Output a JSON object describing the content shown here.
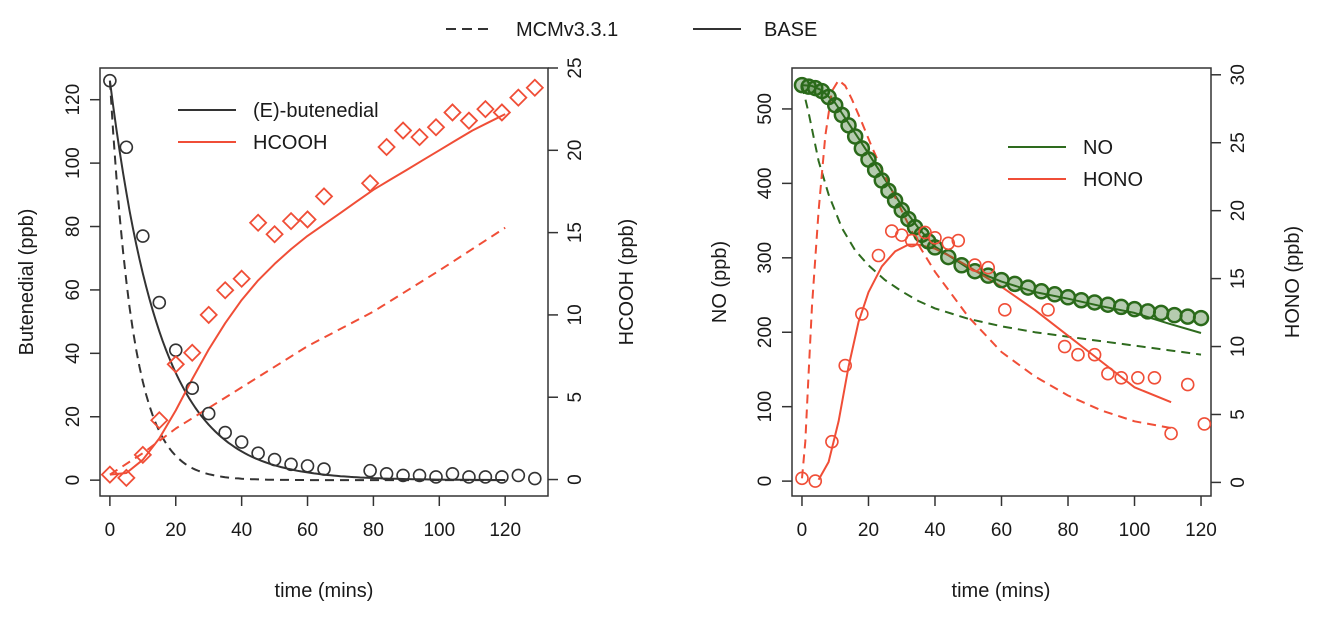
{
  "figure_legend": {
    "items": [
      {
        "label": "MCMv3.3.1",
        "dash": true
      },
      {
        "label": "BASE",
        "dash": false
      }
    ]
  },
  "colors": {
    "black": "#333333",
    "red": "#f04e37",
    "green": "#2e6b1e",
    "green_marker": "#2a6a1a"
  },
  "chart_data": [
    {
      "type": "line",
      "panel": "left",
      "xlabel": "time (mins)",
      "ylabel_left": "Butenedial (ppb)",
      "ylabel_right": "HCOOH (ppb)",
      "xlim": [
        -3,
        133
      ],
      "ylim_left": [
        -5,
        130
      ],
      "ylim_right": [
        -1,
        25
      ],
      "x_ticks": [
        0,
        20,
        40,
        60,
        80,
        100,
        120
      ],
      "y_ticks_left": [
        0,
        20,
        40,
        60,
        80,
        100,
        120
      ],
      "y_ticks_right": [
        0,
        5,
        10,
        15,
        20,
        25
      ],
      "legend": {
        "placement": "top",
        "entries": [
          {
            "label": "(E)-butenedial",
            "color": "#333333"
          },
          {
            "label": "HCOOH",
            "color": "#f04e37"
          }
        ]
      },
      "series": [
        {
          "name": "(E)-butenedial",
          "kind": "observed",
          "axis": "left",
          "marker": "circle",
          "color": "#333333",
          "x": [
            0,
            5,
            10,
            15,
            20,
            25,
            30,
            35,
            40,
            45,
            50,
            55,
            60,
            65,
            79,
            84,
            89,
            94,
            99,
            104,
            109,
            114,
            119,
            124,
            129
          ],
          "y": [
            126,
            105,
            77,
            56,
            41,
            29,
            21,
            15,
            12,
            8.5,
            6.5,
            5,
            4.5,
            3.5,
            3,
            2,
            1.5,
            1.5,
            1,
            2,
            1,
            1,
            1,
            1.5,
            0.5
          ]
        },
        {
          "name": "(E)-butenedial",
          "kind": "BASE",
          "axis": "left",
          "color": "#333333",
          "dash": false,
          "model": {
            "type": "exp",
            "y0": 126,
            "k": 0.0658,
            "x0": 0,
            "x1": 120
          }
        },
        {
          "name": "(E)-butenedial",
          "kind": "MCMv3.3.1",
          "axis": "left",
          "color": "#333333",
          "dash": true,
          "model": {
            "type": "exp",
            "y0": 126,
            "k": 0.14,
            "x0": 0,
            "x1": 120
          }
        },
        {
          "name": "HCOOH",
          "kind": "observed",
          "axis": "right",
          "marker": "diamond",
          "color": "#f04e37",
          "x": [
            0,
            5,
            10,
            15,
            20,
            25,
            30,
            35,
            40,
            45,
            50,
            55,
            60,
            65,
            79,
            84,
            89,
            94,
            99,
            104,
            109,
            114,
            119,
            124,
            129
          ],
          "y": [
            0.3,
            0.1,
            1.5,
            3.6,
            7,
            7.7,
            10,
            11.5,
            12.2,
            15.6,
            14.9,
            15.7,
            15.8,
            17.2,
            18,
            20.2,
            21.2,
            20.8,
            21.4,
            22.3,
            21.8,
            22.5,
            22.3,
            23.2,
            23.8
          ]
        },
        {
          "name": "HCOOH",
          "kind": "BASE",
          "axis": "right",
          "color": "#f04e37",
          "dash": false,
          "x": [
            0,
            5,
            10,
            15,
            20,
            25,
            30,
            35,
            40,
            45,
            50,
            55,
            60,
            65,
            70,
            75,
            80,
            85,
            90,
            95,
            100,
            105,
            110,
            115,
            120
          ],
          "y": [
            0.3,
            0.4,
            1.2,
            2.5,
            4.2,
            6.1,
            7.9,
            9.5,
            10.9,
            12.1,
            13.1,
            14,
            14.8,
            15.5,
            16.2,
            16.9,
            17.6,
            18.2,
            18.8,
            19.4,
            20,
            20.6,
            21.2,
            21.7,
            22.2
          ]
        },
        {
          "name": "HCOOH",
          "kind": "MCMv3.3.1",
          "axis": "right",
          "color": "#f04e37",
          "dash": true,
          "x": [
            0,
            10,
            20,
            40,
            60,
            80,
            100,
            120
          ],
          "y": [
            0.3,
            1.6,
            3.1,
            5.6,
            8.1,
            10.2,
            12.7,
            15.3
          ]
        }
      ]
    },
    {
      "type": "line",
      "panel": "right",
      "xlabel": "time (mins)",
      "ylabel_left": "NO (ppb)",
      "ylabel_right": "HONO (ppb)",
      "xlim": [
        -3,
        123
      ],
      "ylim_left": [
        -20,
        555
      ],
      "ylim_right": [
        -1,
        30.5
      ],
      "x_ticks": [
        0,
        20,
        40,
        60,
        80,
        100,
        120
      ],
      "y_ticks_left": [
        0,
        100,
        200,
        300,
        400,
        500
      ],
      "y_ticks_right": [
        0,
        5,
        10,
        15,
        20,
        25,
        30
      ],
      "legend": {
        "placement": "top-right",
        "entries": [
          {
            "label": "NO",
            "color": "#2e6b1e"
          },
          {
            "label": "HONO",
            "color": "#f04e37"
          }
        ]
      },
      "series": [
        {
          "name": "NO",
          "kind": "observed",
          "axis": "left",
          "marker": "circle",
          "color": "#2a6a1a",
          "x": [
            0,
            2,
            4,
            6,
            8,
            10,
            12,
            14,
            16,
            18,
            20,
            22,
            24,
            26,
            28,
            30,
            32,
            34,
            36,
            38,
            40,
            44,
            48,
            52,
            56,
            60,
            64,
            68,
            72,
            76,
            80,
            84,
            88,
            92,
            96,
            100,
            104,
            108,
            112,
            116,
            120
          ],
          "y": [
            532,
            530,
            528,
            524,
            516,
            505,
            492,
            478,
            463,
            447,
            432,
            418,
            404,
            390,
            377,
            364,
            352,
            341,
            331,
            322,
            314,
            301,
            290,
            282,
            276,
            270,
            265,
            260,
            255,
            251,
            247,
            243,
            240,
            237,
            234,
            231,
            228,
            226,
            223,
            221,
            219
          ]
        },
        {
          "name": "NO",
          "kind": "BASE",
          "axis": "left",
          "color": "#2e6b1e",
          "dash": false,
          "x": [
            0,
            3,
            6,
            10,
            15,
            20,
            25,
            30,
            35,
            40,
            50,
            60,
            70,
            80,
            90,
            100,
            110,
            120
          ],
          "y": [
            532,
            531,
            525,
            508,
            474,
            440,
            405,
            370,
            340,
            315,
            286,
            268,
            254,
            245,
            235,
            226,
            212,
            199
          ]
        },
        {
          "name": "NO",
          "kind": "MCMv3.3.1",
          "axis": "left",
          "color": "#2e6b1e",
          "dash": true,
          "x": [
            0,
            2,
            5,
            8,
            12,
            16,
            20,
            25,
            30,
            35,
            40,
            50,
            60,
            70,
            80,
            90,
            100,
            110,
            120
          ],
          "y": [
            532,
            495,
            430,
            385,
            340,
            310,
            290,
            270,
            255,
            242,
            232,
            218,
            208,
            200,
            194,
            188,
            182,
            176,
            170
          ]
        },
        {
          "name": "HONO",
          "kind": "observed",
          "axis": "right",
          "marker": "circle",
          "color": "#f04e37",
          "x": [
            0,
            4,
            9,
            13,
            18,
            23,
            27,
            30,
            33,
            37,
            40,
            44,
            47,
            52,
            56,
            61,
            74,
            79,
            83,
            88,
            92,
            96,
            101,
            106,
            111,
            116,
            121
          ],
          "y": [
            0.3,
            0.1,
            3,
            8.6,
            12.4,
            16.7,
            18.5,
            18.2,
            17.8,
            18.4,
            18,
            17.6,
            17.8,
            16,
            15.8,
            12.7,
            12.7,
            10,
            9.4,
            9.4,
            8,
            7.7,
            7.7,
            7.7,
            3.6,
            7.2,
            4.3
          ]
        },
        {
          "name": "HONO",
          "kind": "BASE",
          "axis": "right",
          "color": "#f04e37",
          "dash": false,
          "x": [
            5,
            8,
            11,
            14,
            17,
            20,
            24,
            28,
            32,
            35,
            40,
            45,
            50,
            60,
            70,
            80,
            90,
            100,
            111
          ],
          "y": [
            0.2,
            1.5,
            4.5,
            8.5,
            11.8,
            14,
            15.9,
            17,
            17.5,
            17.5,
            17.2,
            16.6,
            15.9,
            14.4,
            12.7,
            10.8,
            8.9,
            7,
            5.9
          ]
        },
        {
          "name": "HONO",
          "kind": "MCMv3.3.1",
          "axis": "right",
          "color": "#f04e37",
          "dash": true,
          "x": [
            0,
            1,
            2,
            3,
            5,
            7,
            9,
            11,
            13,
            15,
            18,
            21,
            25,
            30,
            35,
            40,
            50,
            60,
            70,
            80,
            90,
            100,
            111
          ],
          "y": [
            0.3,
            3,
            8,
            13,
            20,
            25.5,
            28.8,
            29.6,
            29.2,
            28.2,
            26.5,
            24.7,
            22.5,
            20,
            17.5,
            15.5,
            12.2,
            9.6,
            7.8,
            6.4,
            5.3,
            4.5,
            4
          ]
        }
      ]
    }
  ]
}
